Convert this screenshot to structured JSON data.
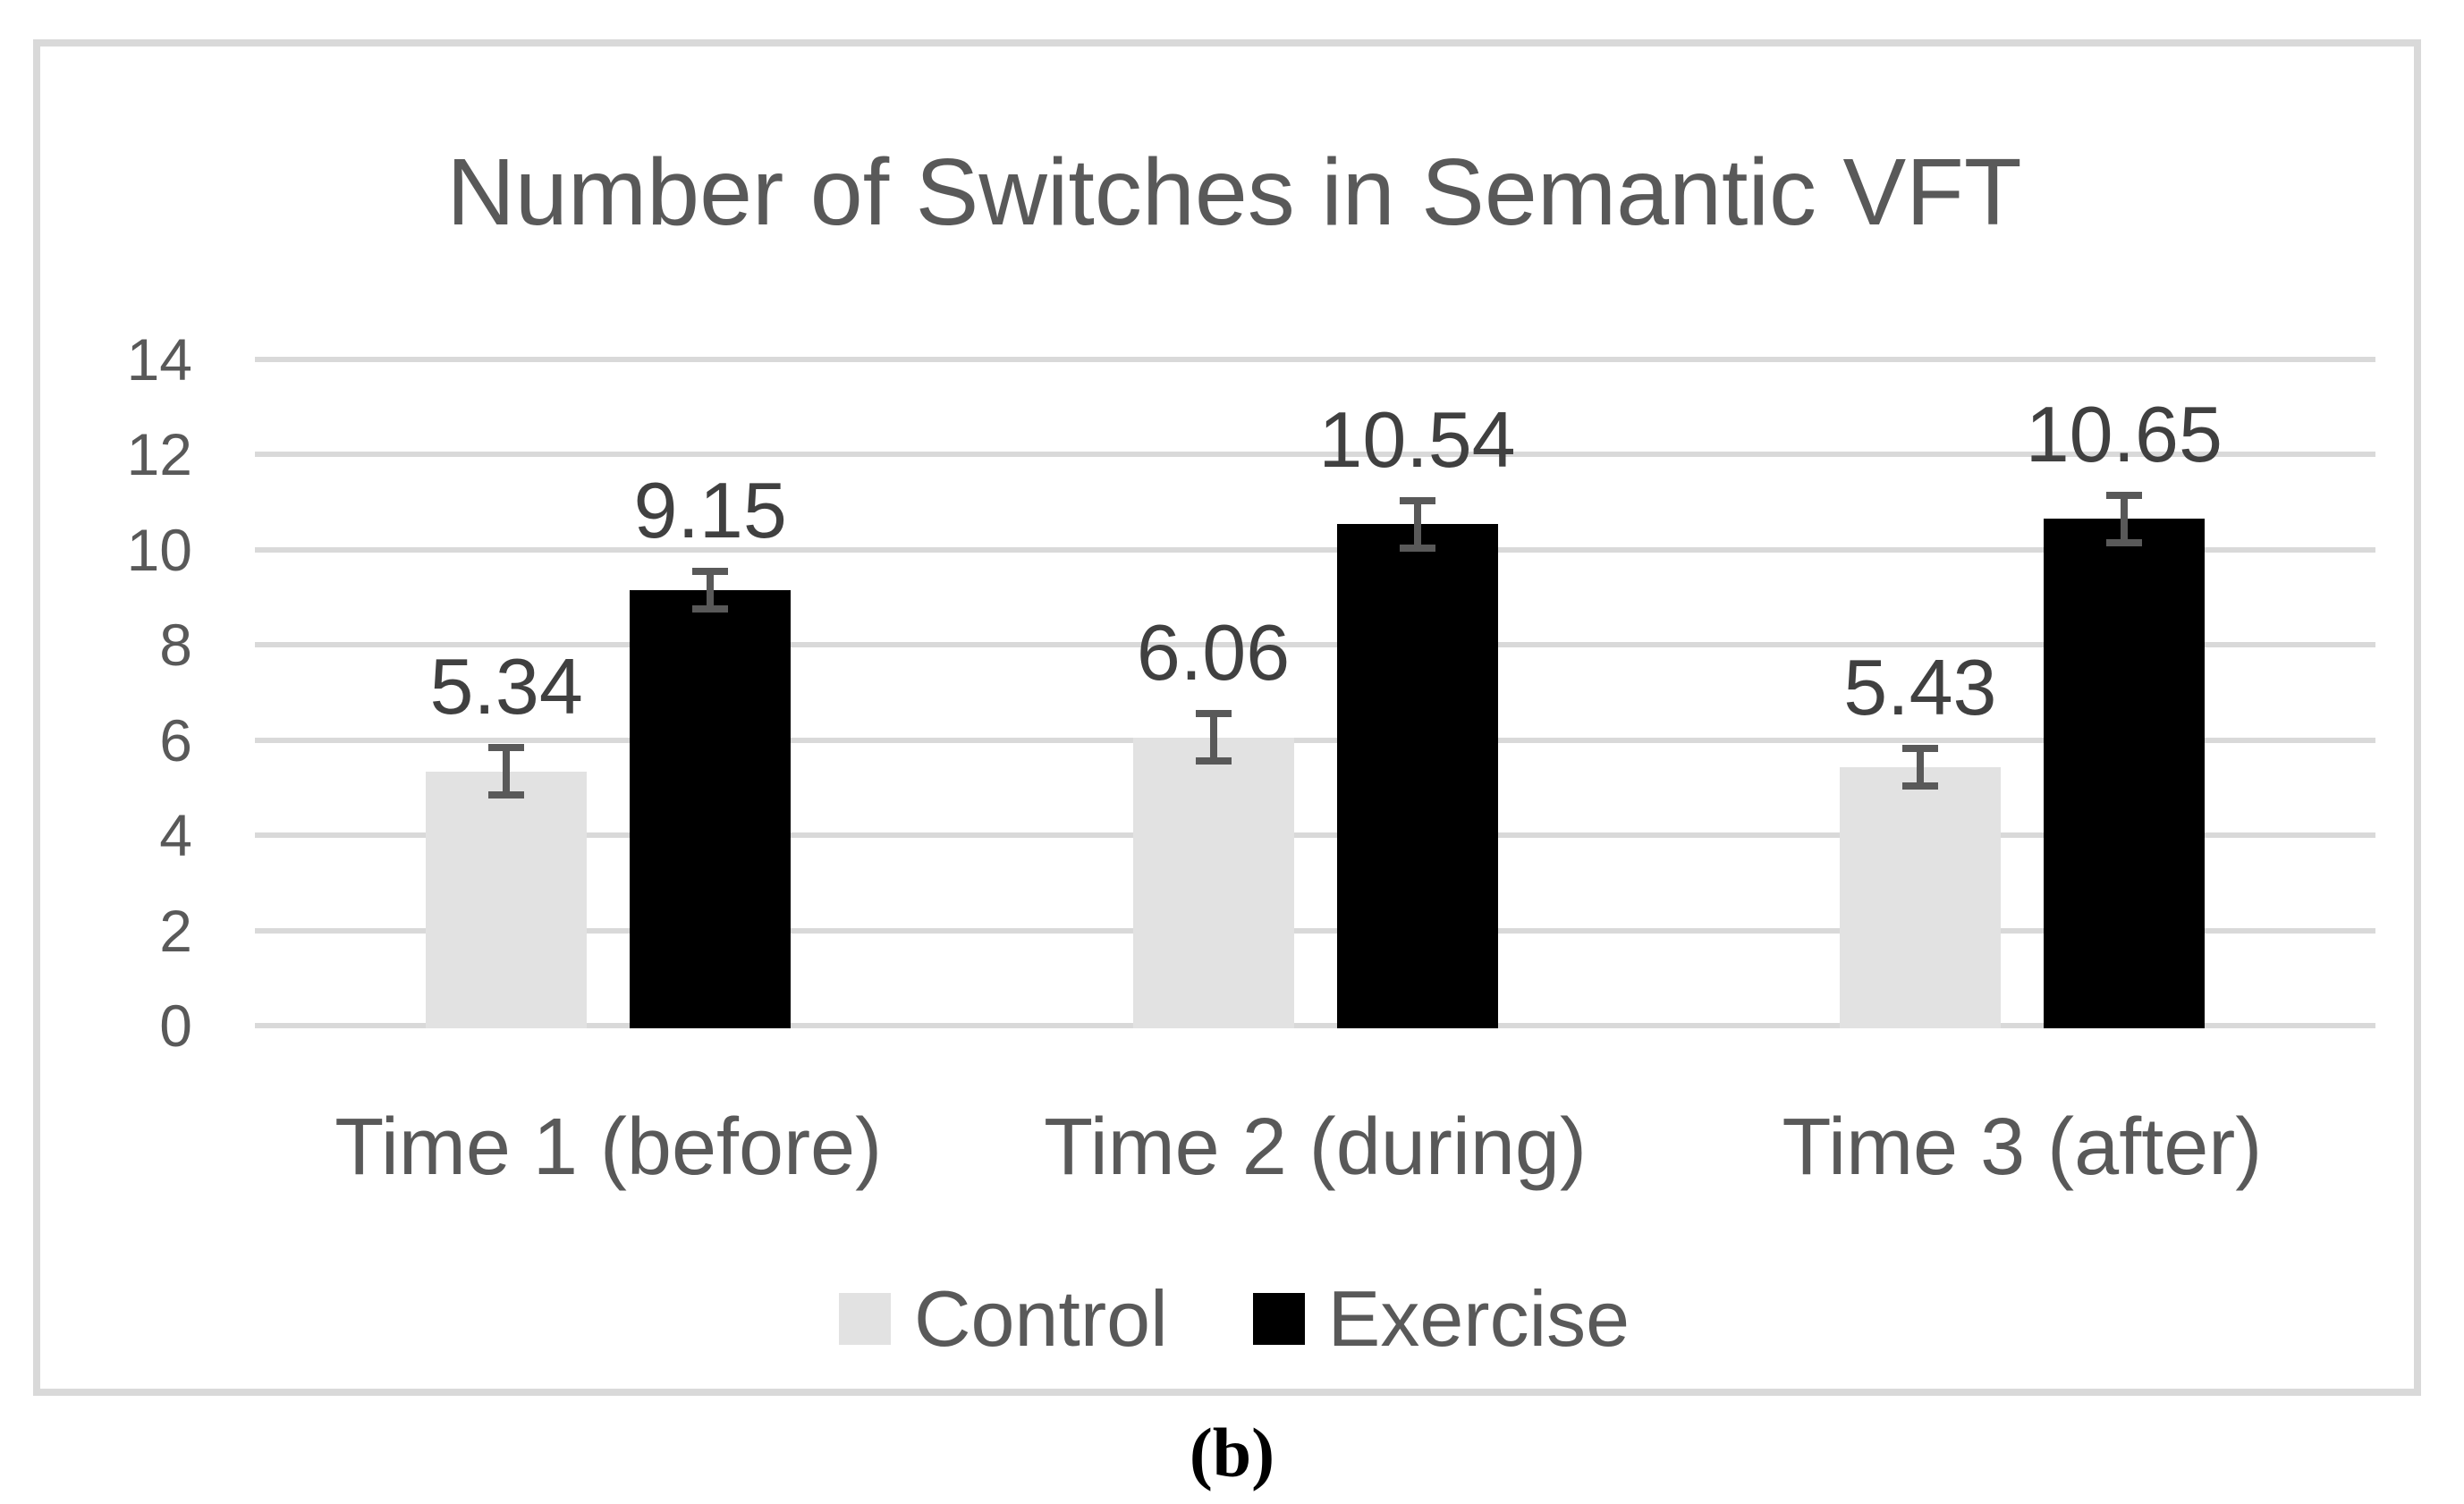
{
  "figure": {
    "caption": "(b)",
    "background_color": "#ffffff",
    "panel_border_color": "#d9d9d9"
  },
  "chart_data": {
    "type": "bar",
    "title": "Number of Switches in Semantic VFT",
    "title_color": "#595959",
    "categories": [
      "Time 1 (before)",
      "Time 2 (during)",
      "Time 3 (after)"
    ],
    "series": [
      {
        "name": "Control",
        "color": "#e2e2e2",
        "values": [
          5.34,
          6.06,
          5.43
        ],
        "error_bars": [
          0.5,
          0.5,
          0.4
        ]
      },
      {
        "name": "Exercise",
        "color": "#000000",
        "values": [
          9.15,
          10.54,
          10.65
        ],
        "error_bars": [
          0.4,
          0.5,
          0.5
        ]
      }
    ],
    "data_labels": [
      [
        "5.34",
        "6.06",
        "5.43"
      ],
      [
        "9.15",
        "10.54",
        "10.65"
      ]
    ],
    "xlabel": "",
    "ylabel": "",
    "ylim": [
      0,
      14
    ],
    "y_tick_step": 2,
    "y_tick_labels": [
      "0",
      "2",
      "4",
      "6",
      "8",
      "10",
      "12",
      "14"
    ],
    "grid": true,
    "gridline_color": "#d9d9d9",
    "axis_text_color": "#595959",
    "data_label_color": "#404040",
    "error_bar_color": "#595959",
    "legend_position": "bottom",
    "legend_entries": [
      "Control",
      "Exercise"
    ]
  }
}
